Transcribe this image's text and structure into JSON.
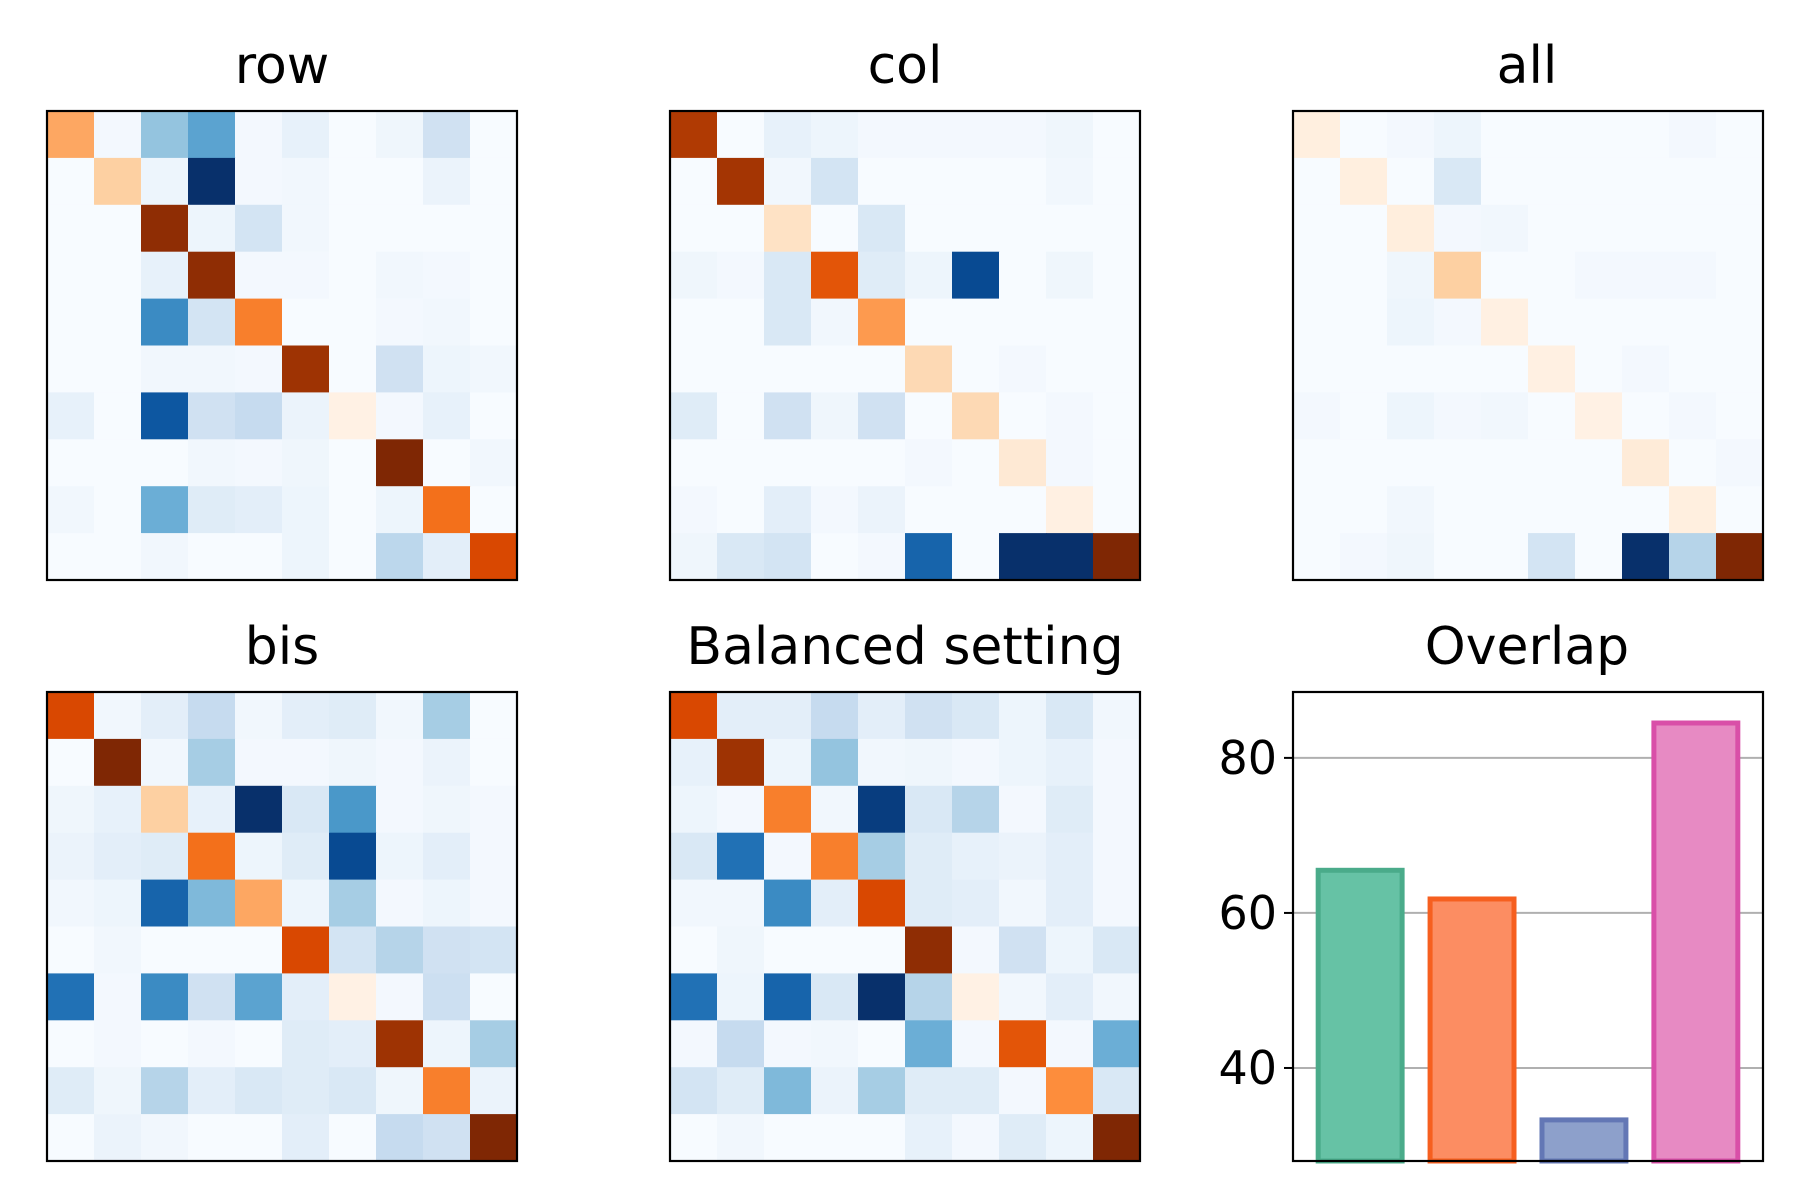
{
  "chart_data": [
    {
      "type": "heatmap",
      "title": "row",
      "size": 10,
      "values": [
        [
          -0.4,
          0.02,
          0.4,
          0.55,
          0.02,
          0.08,
          0.0,
          0.04,
          0.2,
          0.0
        ],
        [
          0.0,
          -0.25,
          0.05,
          1.0,
          0.02,
          0.03,
          0.0,
          0.0,
          0.06,
          0.0
        ],
        [
          0.0,
          0.0,
          -0.95,
          0.05,
          0.18,
          0.03,
          0.0,
          0.0,
          0.0,
          0.0
        ],
        [
          0.0,
          0.0,
          0.08,
          -0.95,
          0.02,
          0.02,
          0.0,
          0.03,
          0.02,
          0.0
        ],
        [
          0.0,
          0.0,
          0.65,
          0.18,
          -0.55,
          0.0,
          0.0,
          0.02,
          0.03,
          0.0
        ],
        [
          0.0,
          0.0,
          0.03,
          0.03,
          0.02,
          -0.9,
          0.0,
          0.2,
          0.05,
          0.03
        ],
        [
          0.08,
          0.0,
          0.85,
          0.2,
          0.25,
          0.06,
          -0.03,
          0.02,
          0.08,
          0.0
        ],
        [
          0.0,
          0.0,
          0.0,
          0.03,
          0.02,
          0.04,
          0.0,
          -1.0,
          0.0,
          0.03
        ],
        [
          0.03,
          0.0,
          0.5,
          0.12,
          0.1,
          0.05,
          0.0,
          0.05,
          -0.6,
          0.0
        ],
        [
          0.0,
          0.0,
          0.03,
          0.0,
          0.0,
          0.05,
          0.0,
          0.28,
          0.1,
          -0.75
        ]
      ]
    },
    {
      "type": "heatmap",
      "title": "col",
      "size": 10,
      "values": [
        [
          -0.85,
          0.0,
          0.08,
          0.05,
          0.02,
          0.02,
          0.02,
          0.02,
          0.04,
          0.0
        ],
        [
          0.0,
          -0.88,
          0.03,
          0.18,
          0.0,
          0.0,
          0.0,
          0.0,
          0.03,
          0.0
        ],
        [
          0.0,
          0.0,
          -0.15,
          0.0,
          0.15,
          0.0,
          0.0,
          0.0,
          0.0,
          0.0
        ],
        [
          0.04,
          0.02,
          0.15,
          -0.7,
          0.12,
          0.05,
          0.9,
          0.0,
          0.04,
          0.0
        ],
        [
          0.0,
          0.0,
          0.15,
          0.03,
          -0.45,
          0.0,
          0.0,
          0.0,
          0.0,
          0.0
        ],
        [
          0.0,
          0.0,
          0.0,
          0.0,
          0.0,
          -0.2,
          0.0,
          0.02,
          0.0,
          0.0
        ],
        [
          0.12,
          0.0,
          0.2,
          0.04,
          0.2,
          0.0,
          -0.2,
          0.0,
          0.02,
          0.0
        ],
        [
          0.0,
          0.0,
          0.0,
          0.0,
          0.0,
          0.02,
          0.0,
          -0.1,
          0.02,
          0.0
        ],
        [
          0.02,
          0.0,
          0.1,
          0.02,
          0.06,
          0.0,
          0.0,
          0.0,
          -0.04,
          0.0
        ],
        [
          0.04,
          0.15,
          0.18,
          0.0,
          0.02,
          0.8,
          0.0,
          1.0,
          1.0,
          -1.0
        ]
      ]
    },
    {
      "type": "heatmap",
      "title": "all",
      "size": 10,
      "values": [
        [
          -0.05,
          0.0,
          0.02,
          0.05,
          0.0,
          0.0,
          0.0,
          0.0,
          0.02,
          0.0
        ],
        [
          0.0,
          -0.05,
          0.0,
          0.15,
          0.0,
          0.0,
          0.0,
          0.0,
          0.0,
          0.0
        ],
        [
          0.0,
          0.0,
          -0.06,
          0.02,
          0.03,
          0.0,
          0.0,
          0.0,
          0.0,
          0.0
        ],
        [
          0.0,
          0.0,
          0.04,
          -0.25,
          0.0,
          0.0,
          0.02,
          0.02,
          0.02,
          0.0
        ],
        [
          0.0,
          0.0,
          0.05,
          0.02,
          -0.04,
          0.0,
          0.0,
          0.0,
          0.0,
          0.0
        ],
        [
          0.0,
          0.0,
          0.0,
          0.0,
          0.0,
          -0.04,
          0.0,
          0.02,
          0.0,
          0.0
        ],
        [
          0.02,
          0.0,
          0.05,
          0.02,
          0.03,
          0.0,
          -0.03,
          0.0,
          0.02,
          0.0
        ],
        [
          0.0,
          0.0,
          0.0,
          0.0,
          0.0,
          0.0,
          0.0,
          -0.08,
          0.0,
          0.02
        ],
        [
          0.0,
          0.0,
          0.03,
          0.0,
          0.0,
          0.0,
          0.0,
          0.0,
          -0.05,
          0.0
        ],
        [
          0.0,
          0.02,
          0.04,
          0.0,
          0.0,
          0.18,
          0.0,
          1.0,
          0.3,
          -1.0
        ]
      ]
    },
    {
      "type": "heatmap",
      "title": "bis",
      "size": 10,
      "values": [
        [
          -0.75,
          0.03,
          0.1,
          0.25,
          0.03,
          0.1,
          0.12,
          0.03,
          0.35,
          0.0
        ],
        [
          0.0,
          -1.0,
          0.03,
          0.35,
          0.02,
          0.02,
          0.04,
          0.02,
          0.06,
          0.0
        ],
        [
          0.04,
          0.08,
          -0.25,
          0.08,
          1.0,
          0.15,
          0.6,
          0.02,
          0.04,
          0.02
        ],
        [
          0.06,
          0.1,
          0.12,
          -0.6,
          0.05,
          0.12,
          0.9,
          0.05,
          0.1,
          0.02
        ],
        [
          0.03,
          0.05,
          0.8,
          0.45,
          -0.4,
          0.05,
          0.35,
          0.02,
          0.05,
          0.02
        ],
        [
          0.0,
          0.03,
          0.0,
          0.0,
          0.0,
          -0.75,
          0.18,
          0.3,
          0.2,
          0.18
        ],
        [
          0.75,
          0.02,
          0.65,
          0.2,
          0.55,
          0.1,
          -0.03,
          0.02,
          0.22,
          0.0
        ],
        [
          0.0,
          0.02,
          0.0,
          0.02,
          0.0,
          0.12,
          0.1,
          -0.9,
          0.05,
          0.35
        ],
        [
          0.12,
          0.04,
          0.3,
          0.1,
          0.15,
          0.12,
          0.15,
          0.04,
          -0.55,
          0.06
        ],
        [
          0.0,
          0.06,
          0.03,
          0.0,
          0.0,
          0.1,
          0.0,
          0.25,
          0.2,
          -1.0
        ]
      ]
    },
    {
      "type": "heatmap",
      "title": "Balanced setting",
      "size": 10,
      "values": [
        [
          -0.75,
          0.1,
          0.1,
          0.25,
          0.1,
          0.2,
          0.15,
          0.05,
          0.15,
          0.03
        ],
        [
          0.08,
          -0.9,
          0.05,
          0.4,
          0.03,
          0.04,
          0.02,
          0.05,
          0.08,
          0.02
        ],
        [
          0.05,
          0.02,
          -0.55,
          0.03,
          0.95,
          0.15,
          0.3,
          0.02,
          0.12,
          0.02
        ],
        [
          0.15,
          0.75,
          0.02,
          -0.55,
          0.35,
          0.12,
          0.08,
          0.06,
          0.1,
          0.02
        ],
        [
          0.03,
          0.03,
          0.65,
          0.1,
          -0.75,
          0.12,
          0.1,
          0.03,
          0.1,
          0.02
        ],
        [
          0.0,
          0.04,
          0.0,
          0.0,
          0.0,
          -0.95,
          0.02,
          0.2,
          0.05,
          0.15
        ],
        [
          0.75,
          0.05,
          0.8,
          0.15,
          1.0,
          0.3,
          -0.03,
          0.03,
          0.1,
          0.03
        ],
        [
          0.02,
          0.25,
          0.02,
          0.03,
          0.0,
          0.5,
          0.02,
          -0.7,
          0.02,
          0.5
        ],
        [
          0.18,
          0.12,
          0.45,
          0.06,
          0.35,
          0.12,
          0.12,
          0.02,
          -0.5,
          0.15
        ],
        [
          0.0,
          0.03,
          0.0,
          0.0,
          0.0,
          0.08,
          0.02,
          0.12,
          0.05,
          -1.0
        ]
      ]
    },
    {
      "type": "bar",
      "title": "Overlap",
      "categories": [
        "",
        "",
        "",
        ""
      ],
      "values": [
        65.5,
        61.8,
        33.3,
        84.5
      ],
      "ylim": [
        28,
        88.5
      ],
      "yticks": [
        40,
        60,
        80
      ],
      "grid": true,
      "fill_colors": [
        "#66c2a5",
        "#fc8d62",
        "#8da0cb",
        "#e78ac3"
      ],
      "edge_colors": [
        "#4aab8a",
        "#f65f1f",
        "#6377b5",
        "#d94fa8"
      ]
    }
  ]
}
